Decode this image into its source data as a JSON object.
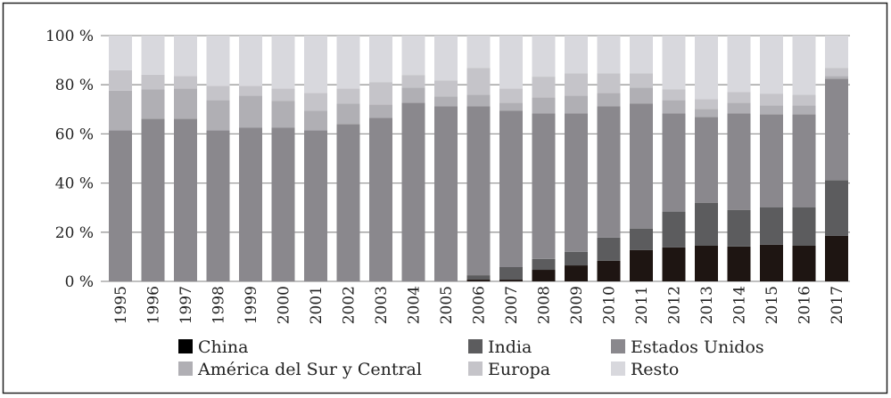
{
  "chart_data": {
    "type": "bar",
    "stacked": true,
    "title": "",
    "xlabel": "",
    "ylabel": "",
    "ylim": [
      0,
      100
    ],
    "yticks": [
      "0 %",
      "20 %",
      "40 %",
      "60 %",
      "80 %",
      "100 %"
    ],
    "ytick_values": [
      0,
      20,
      40,
      60,
      80,
      100
    ],
    "grid": true,
    "legend_position": "bottom",
    "categories": [
      "1995",
      "1996",
      "1997",
      "1998",
      "1999",
      "2000",
      "2001",
      "2002",
      "2003",
      "2004",
      "2005",
      "2006",
      "2007",
      "2008",
      "2009",
      "2010",
      "2011",
      "2012",
      "2013",
      "2014",
      "2015",
      "2016",
      "2017"
    ],
    "series": [
      {
        "name": "China",
        "color": "#1e1512",
        "values": [
          0,
          0,
          0,
          0,
          0,
          0,
          0,
          0,
          0,
          0,
          0,
          0.7,
          0.7,
          4.7,
          6.5,
          8.4,
          12.7,
          13.8,
          14.5,
          14.2,
          14.9,
          14.5,
          18.5
        ]
      },
      {
        "name": "India",
        "color": "#5c5c5e",
        "values": [
          0,
          0,
          0,
          0,
          0,
          0,
          0,
          0,
          0,
          0,
          0,
          1.8,
          5.1,
          4.4,
          5.5,
          9.4,
          8.8,
          14.6,
          17.5,
          14.9,
          15.3,
          15.7,
          22.6
        ]
      },
      {
        "name": "Estados Unidos",
        "color": "#8a888d",
        "values": [
          61.5,
          66.2,
          66.2,
          61.5,
          62.5,
          62.5,
          61.5,
          64.0,
          66.5,
          72.7,
          71.3,
          68.8,
          63.7,
          59.3,
          56.4,
          53.5,
          50.9,
          40.0,
          34.9,
          39.3,
          37.8,
          37.8,
          41.4
        ]
      },
      {
        "name": "América del Sur y Central",
        "color": "#b0afb4",
        "values": [
          16.1,
          12.0,
          12.3,
          12.3,
          13.1,
          11.0,
          8.0,
          8.4,
          5.5,
          6.2,
          4.0,
          4.7,
          3.2,
          6.5,
          7.2,
          5.4,
          6.5,
          5.4,
          3.3,
          4.3,
          3.6,
          3.6,
          1.1
        ]
      },
      {
        "name": "Europa",
        "color": "#c5c4c9",
        "values": [
          8.3,
          5.9,
          5.1,
          5.8,
          4.0,
          5.0,
          7.2,
          6.1,
          9.1,
          5.1,
          6.5,
          10.9,
          5.8,
          8.4,
          9.1,
          8.0,
          5.8,
          4.4,
          4.0,
          4.4,
          4.8,
          4.4,
          3.3
        ]
      },
      {
        "name": "Resto",
        "color": "#d8d8dd",
        "values": [
          14.1,
          15.9,
          16.4,
          20.4,
          20.4,
          21.5,
          23.3,
          21.5,
          18.9,
          16.0,
          18.2,
          13.1,
          21.5,
          16.7,
          15.3,
          15.3,
          15.3,
          21.8,
          25.8,
          22.9,
          23.6,
          24.0,
          13.1
        ]
      }
    ],
    "legend_order": [
      0,
      1,
      2,
      3,
      4,
      5
    ]
  }
}
